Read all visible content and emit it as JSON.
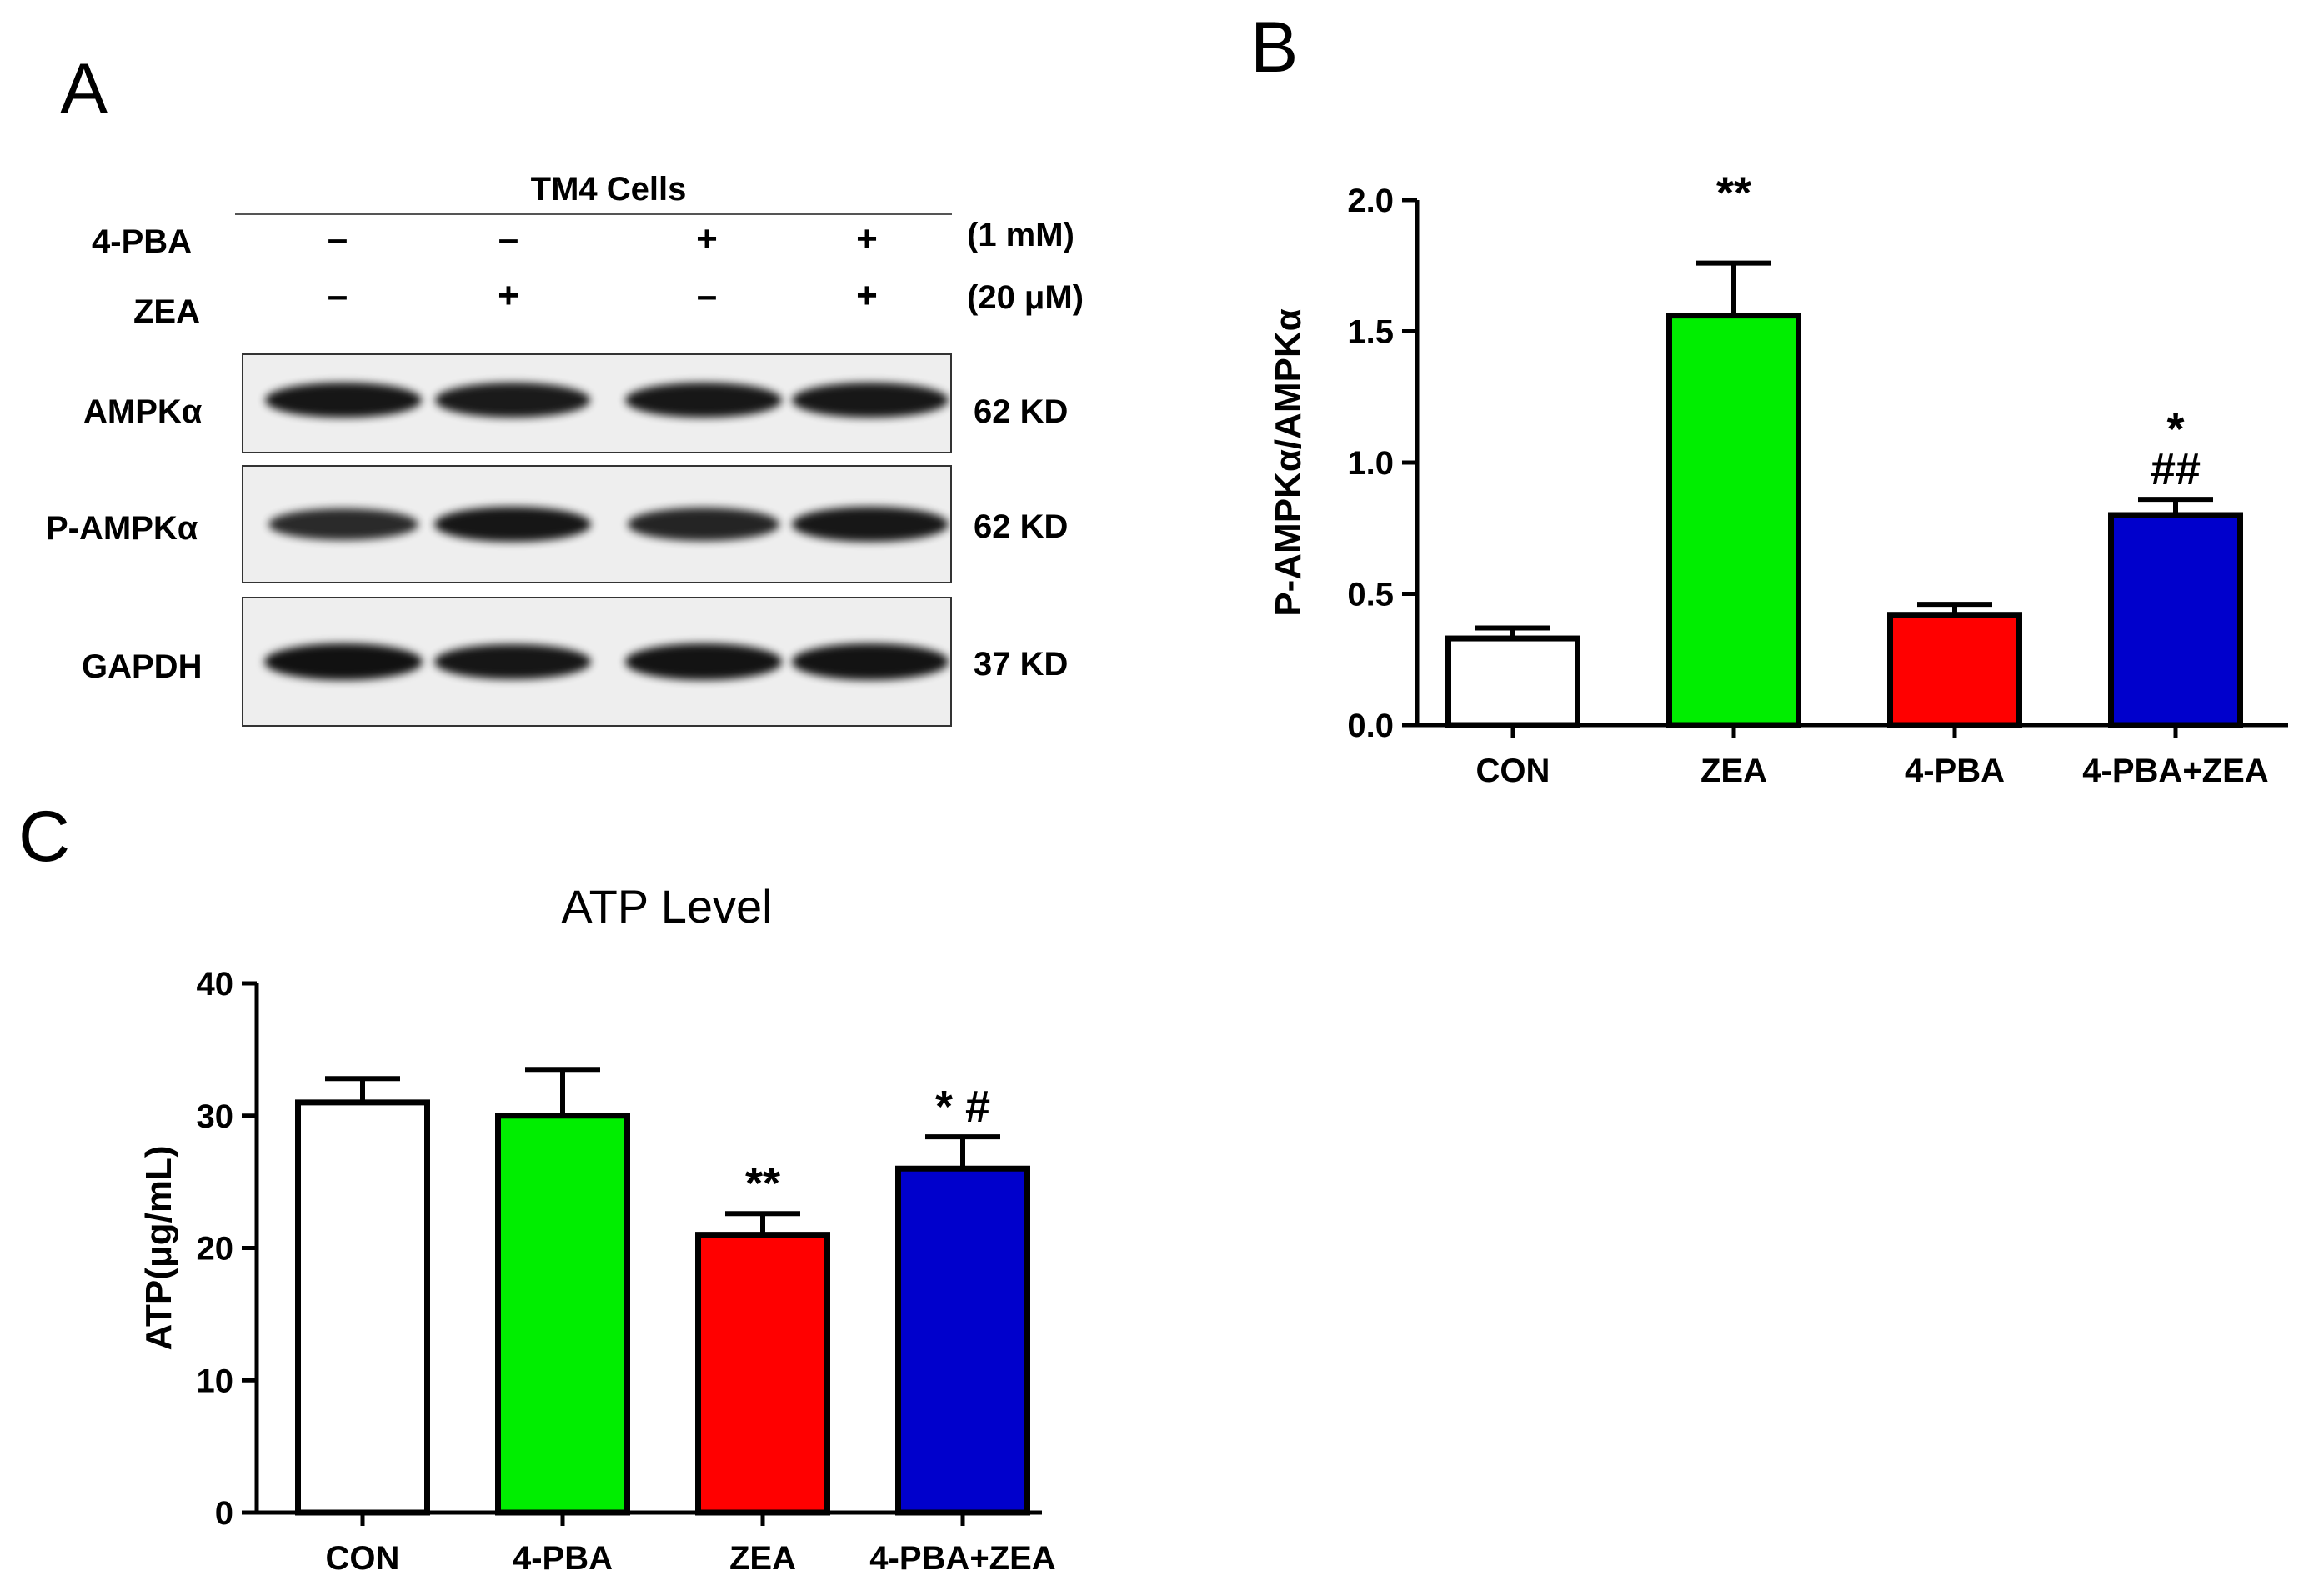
{
  "panels": {
    "a_label": "A",
    "b_label": "B",
    "c_label": "C"
  },
  "western_blot": {
    "header": "TM4 Cells",
    "conditions": [
      {
        "name": "4-PBA",
        "marks": [
          "–",
          "–",
          "+",
          "+"
        ],
        "dose": "(1  mM)"
      },
      {
        "name": "ZEA",
        "marks": [
          "–",
          "+",
          "–",
          "+"
        ],
        "dose": "(20 μM)"
      }
    ],
    "rows": [
      {
        "protein": "AMPKα",
        "size": "62 KD",
        "intensity": [
          0.95,
          0.9,
          0.93,
          0.93
        ]
      },
      {
        "protein": "P-AMPKα",
        "size": "62 KD",
        "intensity": [
          0.75,
          0.95,
          0.8,
          0.93
        ]
      },
      {
        "protein": "GAPDH",
        "size": "37 KD",
        "intensity": [
          1.0,
          0.95,
          0.97,
          0.97
        ]
      }
    ]
  },
  "chart_data": [
    {
      "type": "bar",
      "title": "",
      "xlabel": "",
      "ylabel": "P-AMPKα/AMPKα",
      "categories": [
        "CON",
        "ZEA",
        "4-PBA",
        "4-PBA+ZEA"
      ],
      "values": [
        0.33,
        1.56,
        0.42,
        0.8
      ],
      "errors": [
        0.04,
        0.2,
        0.04,
        0.06
      ],
      "annotations": [
        [
          "",
          ""
        ],
        [
          "**",
          ""
        ],
        [
          "",
          ""
        ],
        [
          "*",
          "##"
        ]
      ],
      "colors": [
        "#ffffff",
        "#00ee00",
        "#ff0000",
        "#0000cc"
      ],
      "ylim": [
        0,
        2.0
      ],
      "yticks": [
        0.0,
        0.5,
        1.0,
        1.5,
        2.0
      ],
      "ytick_labels": [
        "0.0",
        "0.5",
        "1.0",
        "1.5",
        "2.0"
      ]
    },
    {
      "type": "bar",
      "title": "ATP Level",
      "xlabel": "",
      "ylabel": "ATP(μg/mL)",
      "categories": [
        "CON",
        "4-PBA",
        "ZEA",
        "4-PBA+ZEA"
      ],
      "values": [
        31,
        30,
        21,
        26
      ],
      "errors": [
        1.8,
        3.5,
        1.6,
        2.4
      ],
      "annotations": [
        [
          ""
        ],
        [
          ""
        ],
        [
          "**"
        ],
        [
          "* #"
        ]
      ],
      "colors": [
        "#ffffff",
        "#00ee00",
        "#ff0000",
        "#0000cc"
      ],
      "ylim": [
        0,
        40
      ],
      "yticks": [
        0,
        10,
        20,
        30,
        40
      ],
      "ytick_labels": [
        "0",
        "10",
        "20",
        "30",
        "40"
      ]
    }
  ]
}
